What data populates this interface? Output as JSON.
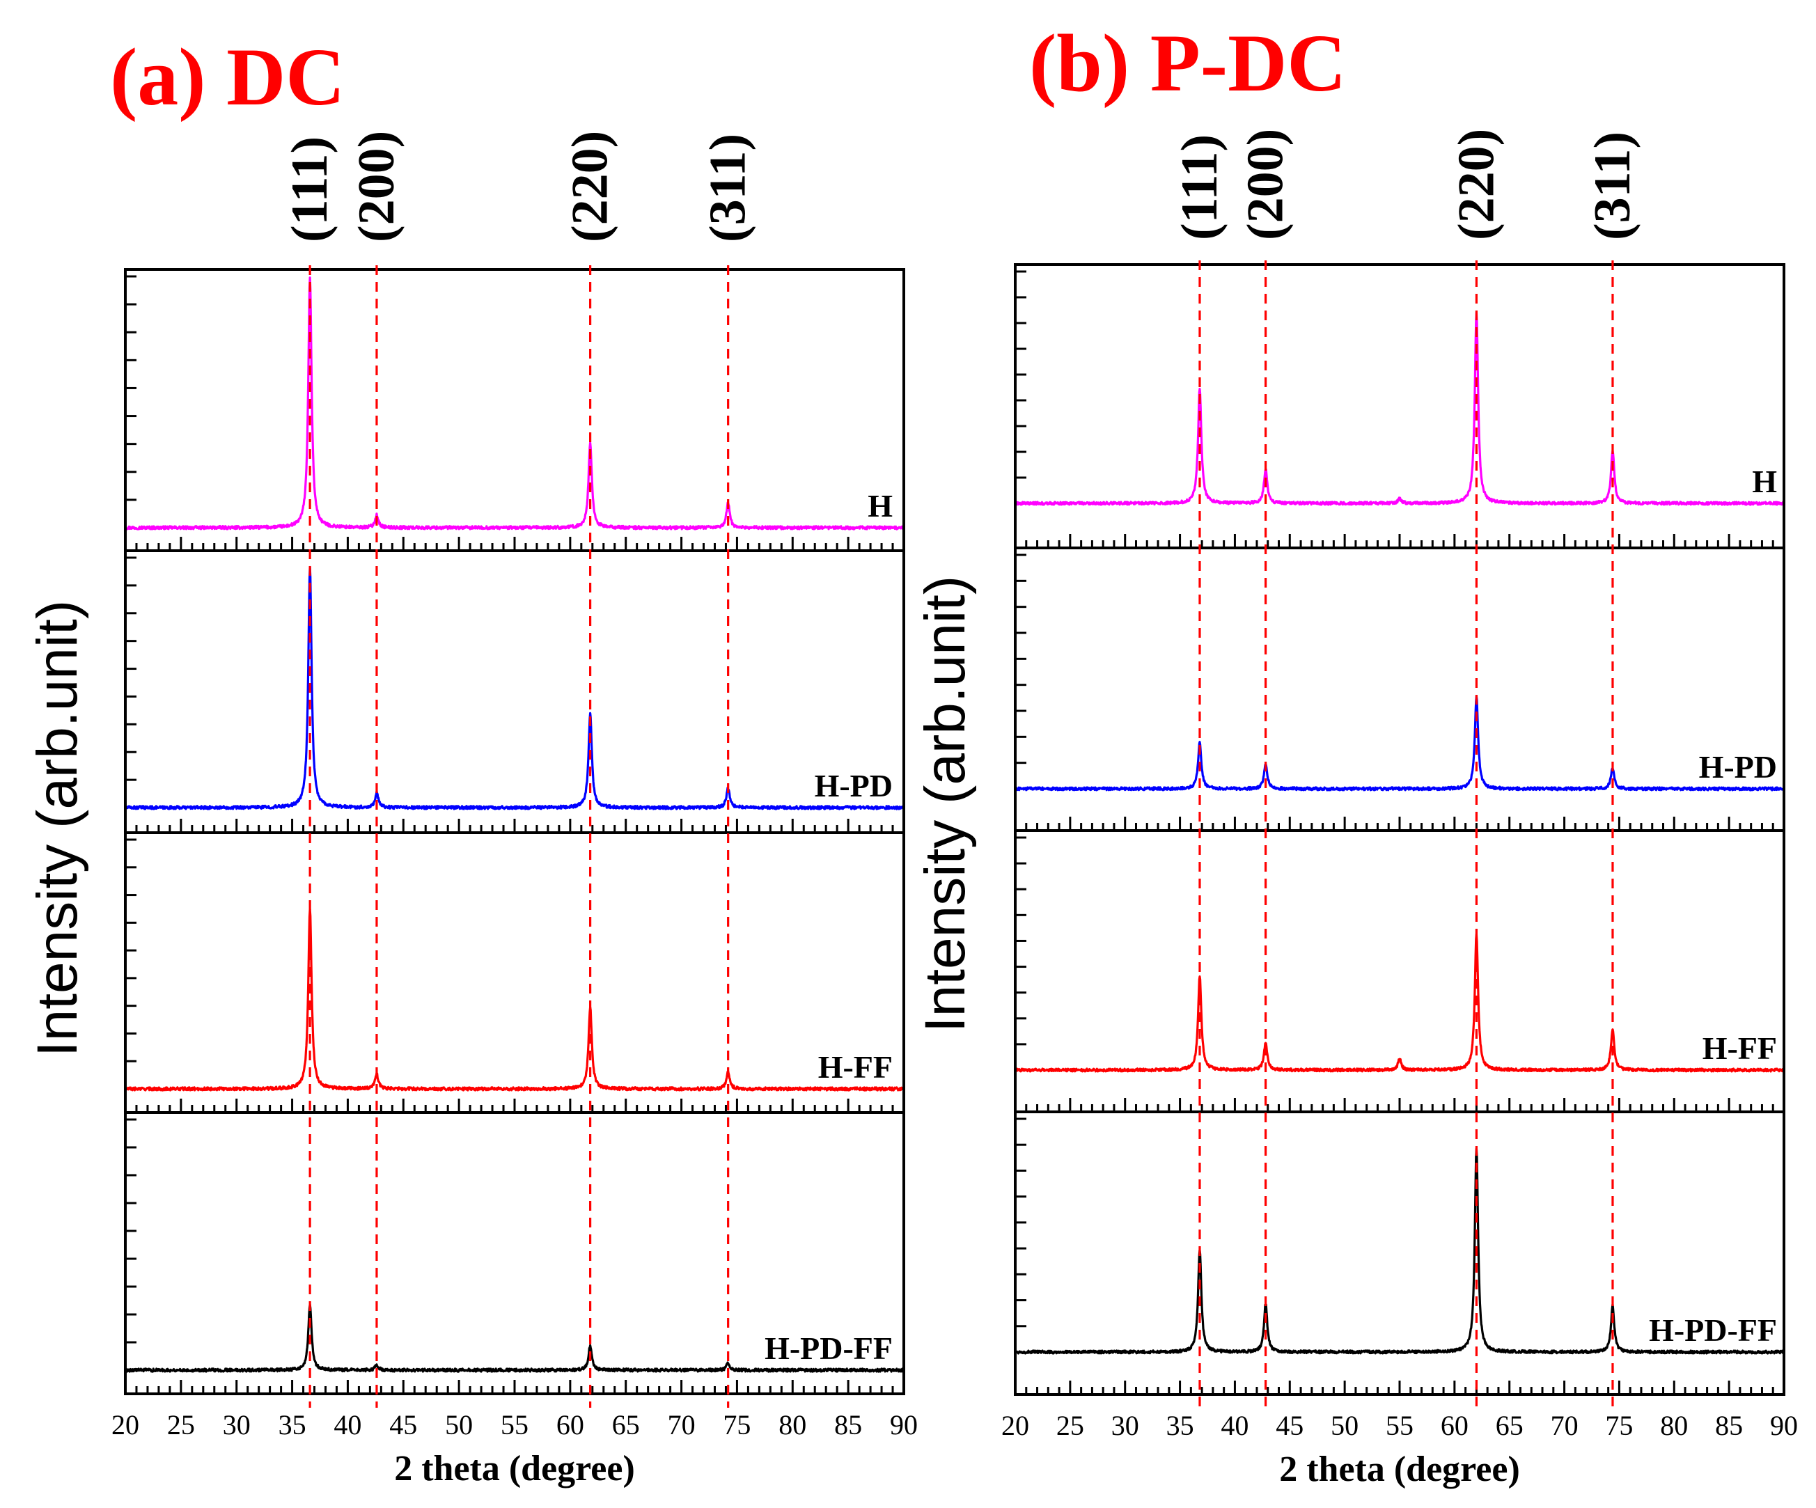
{
  "colors": {
    "title": "#ff0000",
    "ref_line": "#ff0000",
    "H": "#ff00ff",
    "H-PD": "#0000ff",
    "H-FF": "#ff0000",
    "H-PD-FF": "#000000"
  },
  "chart_data": [
    {
      "type": "line",
      "panel": "a",
      "title": "(a) DC",
      "xlabel": "2 theta (degree)",
      "ylabel": "Intensity (arb.unit)",
      "xlim": [
        20,
        90
      ],
      "xticks": [
        20,
        25,
        30,
        35,
        40,
        45,
        50,
        55,
        60,
        65,
        70,
        75,
        80,
        85,
        90
      ],
      "reference_peaks": [
        {
          "label": "(111)",
          "x": 36.6
        },
        {
          "label": "(200)",
          "x": 42.6
        },
        {
          "label": "(220)",
          "x": 61.8
        },
        {
          "label": "(311)",
          "x": 74.2
        }
      ],
      "series": [
        {
          "name": "H",
          "peaks": [
            {
              "x": 36.6,
              "y": 1.0
            },
            {
              "x": 42.6,
              "y": 0.05
            },
            {
              "x": 61.8,
              "y": 0.34
            },
            {
              "x": 74.2,
              "y": 0.1
            }
          ]
        },
        {
          "name": "H-PD",
          "peaks": [
            {
              "x": 36.6,
              "y": 0.97
            },
            {
              "x": 42.6,
              "y": 0.06
            },
            {
              "x": 61.8,
              "y": 0.38
            },
            {
              "x": 74.2,
              "y": 0.08
            }
          ]
        },
        {
          "name": "H-FF",
          "peaks": [
            {
              "x": 36.6,
              "y": 0.73
            },
            {
              "x": 42.6,
              "y": 0.06
            },
            {
              "x": 61.8,
              "y": 0.33
            },
            {
              "x": 74.2,
              "y": 0.07
            }
          ]
        },
        {
          "name": "H-PD-FF",
          "peaks": [
            {
              "x": 36.6,
              "y": 0.26
            },
            {
              "x": 42.6,
              "y": 0.02
            },
            {
              "x": 61.8,
              "y": 0.1
            },
            {
              "x": 74.2,
              "y": 0.03
            }
          ]
        }
      ]
    },
    {
      "type": "line",
      "panel": "b",
      "title": "(b) P-DC",
      "xlabel": "2 theta (degree)",
      "ylabel": "Intensity (arb.unit)",
      "xlim": [
        20,
        90
      ],
      "xticks": [
        20,
        25,
        30,
        35,
        40,
        45,
        50,
        55,
        60,
        65,
        70,
        75,
        80,
        85,
        90
      ],
      "reference_peaks": [
        {
          "label": "(111)",
          "x": 36.8
        },
        {
          "label": "(200)",
          "x": 42.8
        },
        {
          "label": "(220)",
          "x": 62.0
        },
        {
          "label": "(311)",
          "x": 74.4
        }
      ],
      "series": [
        {
          "name": "H",
          "peaks": [
            {
              "x": 36.8,
              "y": 0.5
            },
            {
              "x": 42.8,
              "y": 0.15
            },
            {
              "x": 55.0,
              "y": 0.02
            },
            {
              "x": 62.0,
              "y": 0.83
            },
            {
              "x": 74.4,
              "y": 0.23
            }
          ]
        },
        {
          "name": "H-PD",
          "peaks": [
            {
              "x": 36.8,
              "y": 0.2
            },
            {
              "x": 42.8,
              "y": 0.11
            },
            {
              "x": 62.0,
              "y": 0.4
            },
            {
              "x": 74.4,
              "y": 0.09
            }
          ]
        },
        {
          "name": "H-FF",
          "peaks": [
            {
              "x": 36.8,
              "y": 0.41
            },
            {
              "x": 42.8,
              "y": 0.12
            },
            {
              "x": 55.0,
              "y": 0.05
            },
            {
              "x": 62.0,
              "y": 0.59
            },
            {
              "x": 74.4,
              "y": 0.18
            }
          ]
        },
        {
          "name": "H-PD-FF",
          "peaks": [
            {
              "x": 36.8,
              "y": 0.44
            },
            {
              "x": 42.8,
              "y": 0.21
            },
            {
              "x": 62.0,
              "y": 0.88
            },
            {
              "x": 74.4,
              "y": 0.2
            }
          ]
        }
      ]
    }
  ]
}
